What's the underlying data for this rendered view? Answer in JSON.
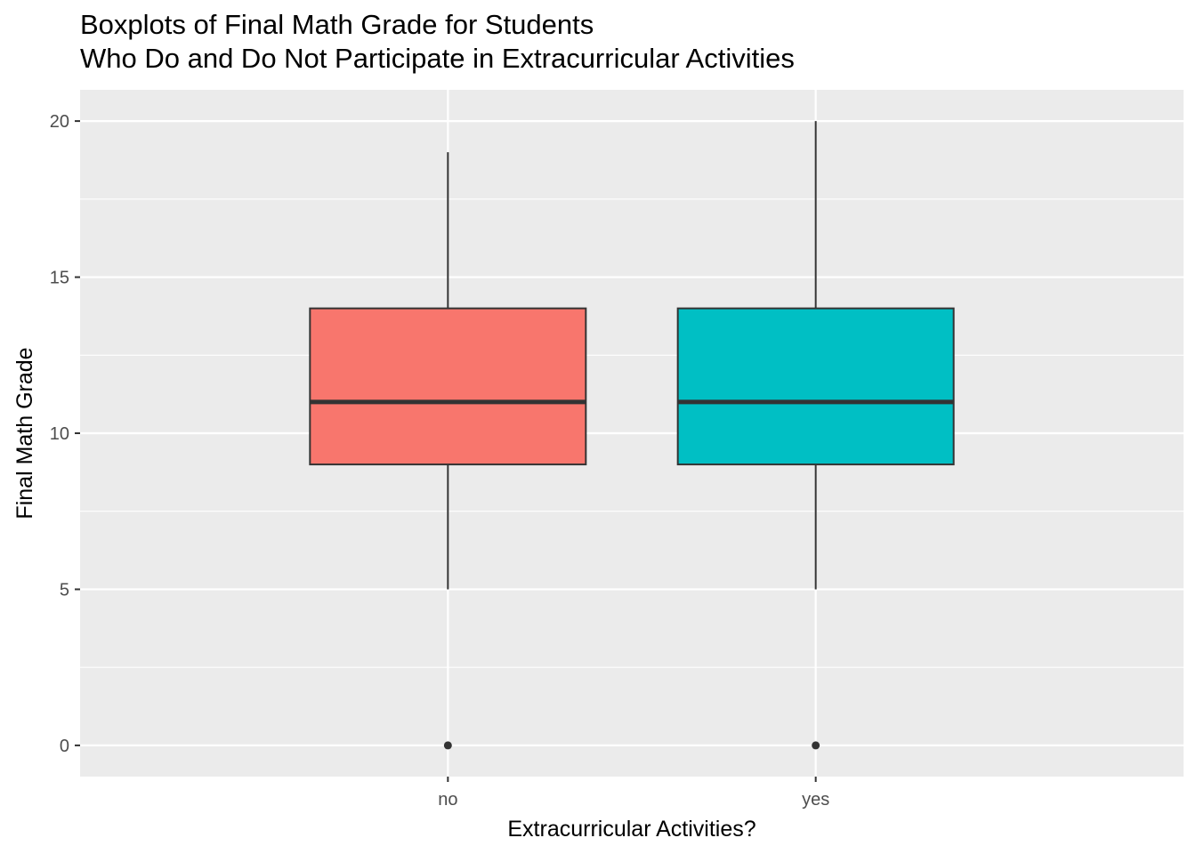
{
  "chart_data": {
    "type": "boxplot",
    "title_lines": [
      "Boxplots of Final Math Grade for Students",
      "Who Do and Do Not Participate in Extracurricular Activities"
    ],
    "xlabel": "Extracurricular Activities?",
    "ylabel": "Final Math Grade",
    "ylim": [
      -1,
      21
    ],
    "yticks": [
      0,
      5,
      10,
      15,
      20
    ],
    "yticks_minor": [
      2.5,
      7.5,
      12.5,
      17.5
    ],
    "grid": true,
    "legend": "none",
    "categories": [
      "no",
      "yes"
    ],
    "boxes": [
      {
        "category": "no",
        "whisker_low": 5,
        "q1": 9,
        "median": 11,
        "q3": 14,
        "whisker_high": 19,
        "outliers": [
          0
        ],
        "color": "#F8766D"
      },
      {
        "category": "yes",
        "whisker_low": 5,
        "q1": 9,
        "median": 11,
        "q3": 14,
        "whisker_high": 20,
        "outliers": [
          0
        ],
        "color": "#00BFC4"
      }
    ]
  },
  "colors": {
    "panel_background": "#EBEBEB",
    "grid": "#FFFFFF",
    "box_outline": "#333333"
  }
}
